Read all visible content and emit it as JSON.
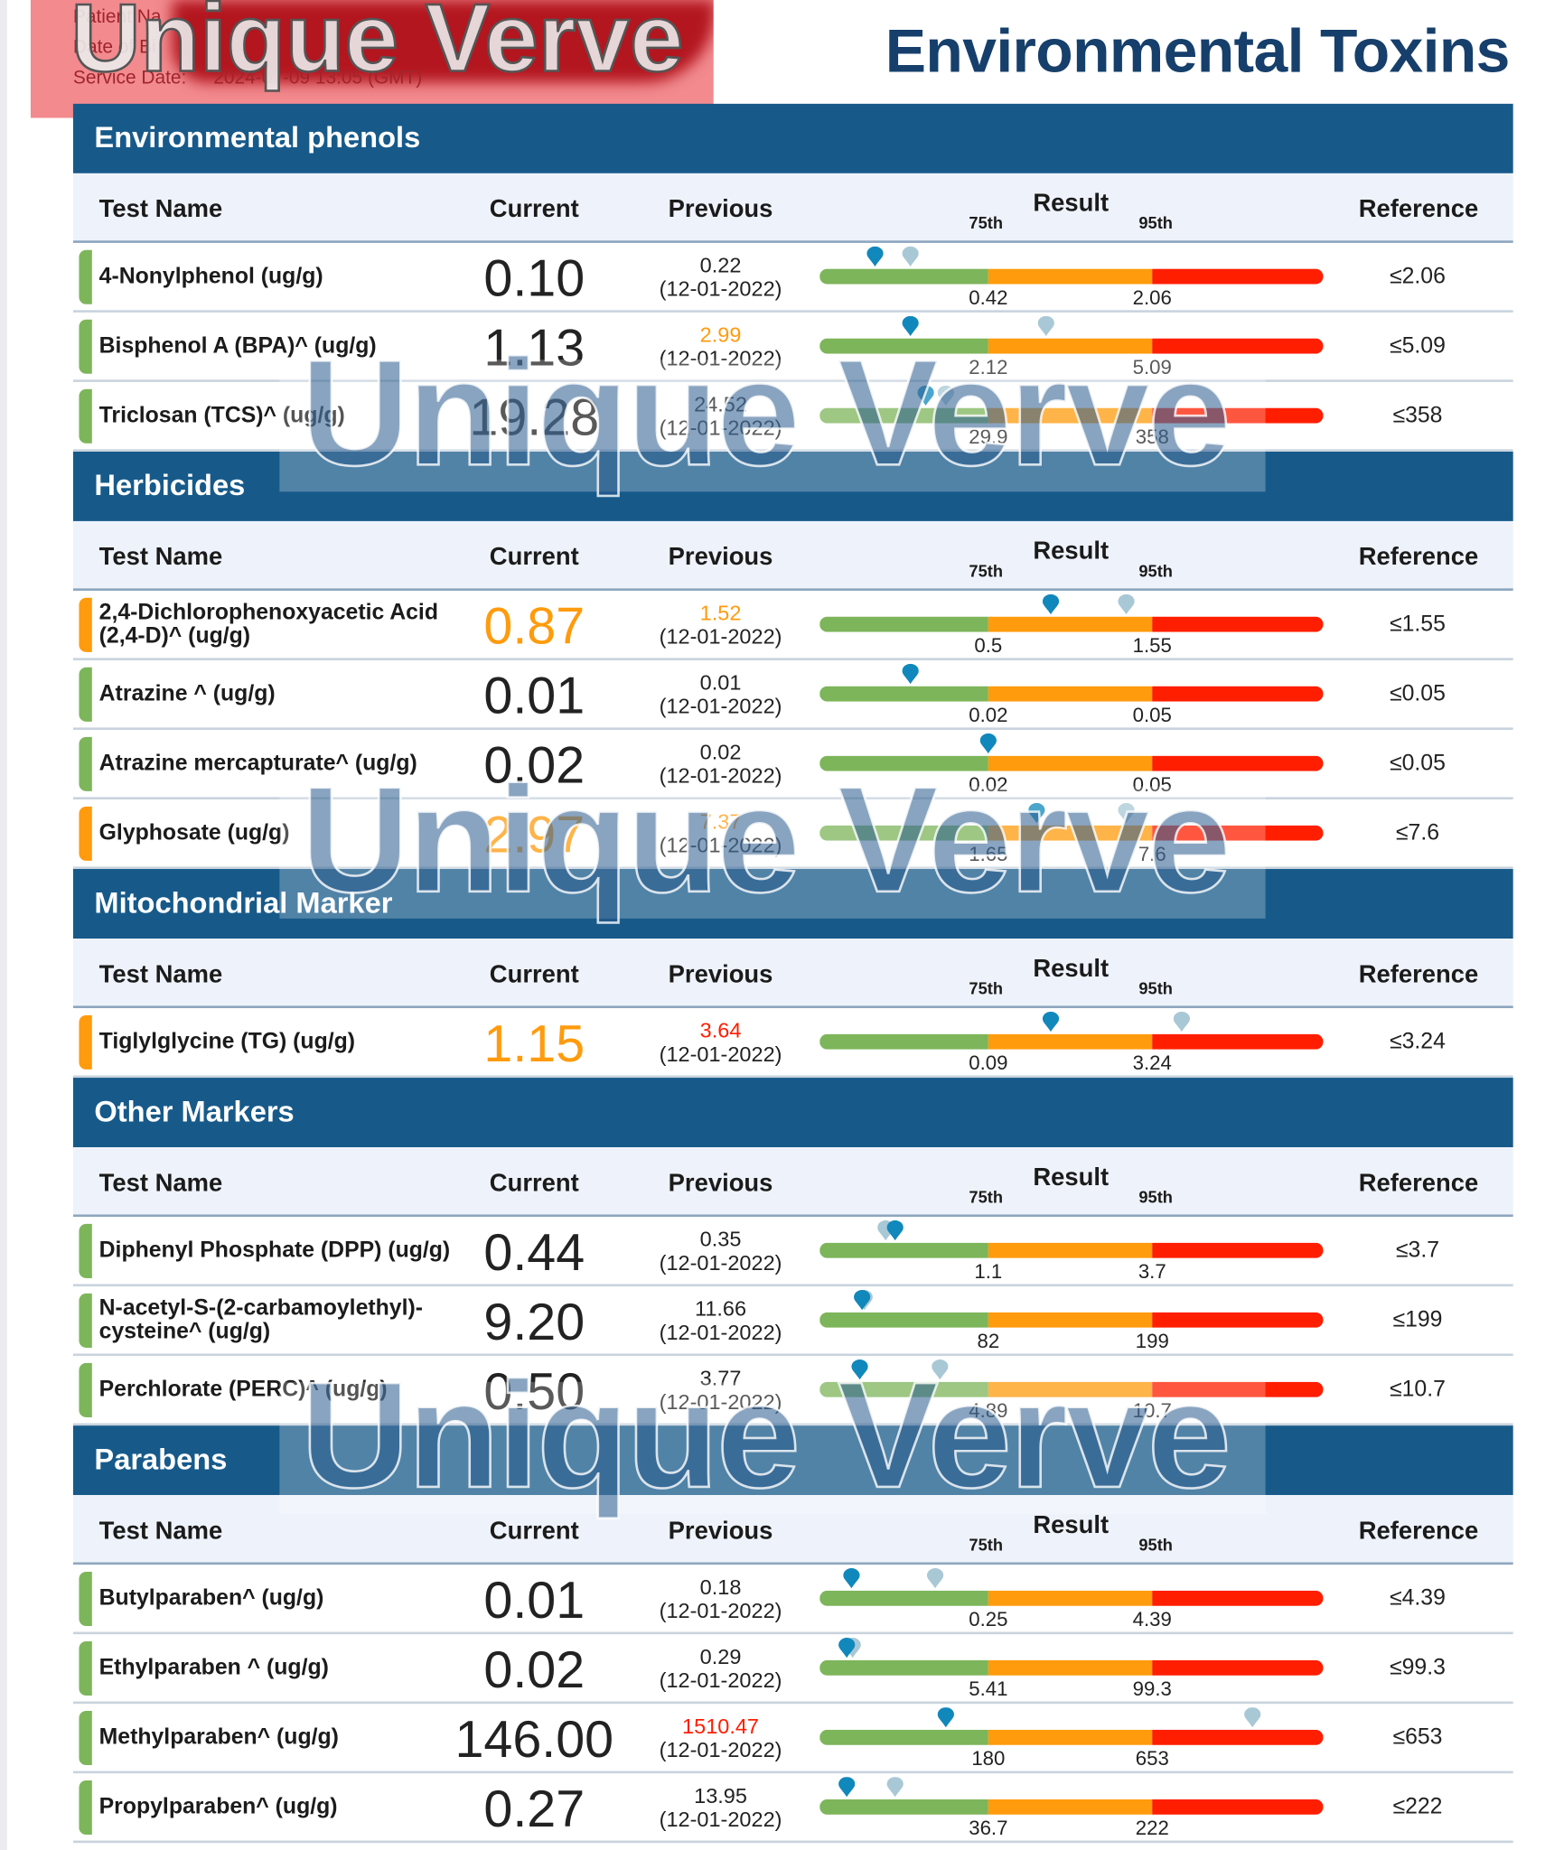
{
  "patient": {
    "name_label": "Patient Na",
    "dob_label": "Date of Bi",
    "service_date_label": "Service Date:",
    "service_date": "2024-07-09 13:05 (GMT)"
  },
  "watermark": "Unique Verve",
  "title": "Environmental Toxins",
  "columns": {
    "test_name": "Test Name",
    "current": "Current",
    "previous": "Previous",
    "result": "Result",
    "p75": "75th",
    "p95": "95th",
    "reference": "Reference"
  },
  "colors": {
    "normal": "#7db55a",
    "elevated": "#ff9b0d",
    "high": "#ff1e00",
    "current_pin": "#1188bb",
    "previous_pin": "#a9c8d6"
  },
  "sections": [
    {
      "title": "Environmental phenols",
      "rows": [
        {
          "name": "4-Nonylphenol (ug/g)",
          "status": "normal",
          "current": "0.10",
          "previous": "0.22",
          "previous_status": "normal",
          "previous_date": "(12-01-2022)",
          "t75": "0.42",
          "t95": "2.06",
          "reference": "≤2.06",
          "current_pos": 0.11,
          "previous_pos": 0.18
        },
        {
          "name": "Bisphenol A (BPA)^ (ug/g)",
          "status": "normal",
          "current": "1.13",
          "previous": "2.99",
          "previous_status": "elevated",
          "previous_date": "(12-01-2022)",
          "t75": "2.12",
          "t95": "5.09",
          "reference": "≤5.09",
          "current_pos": 0.18,
          "previous_pos": 0.45
        },
        {
          "name": "Triclosan (TCS)^ (ug/g)",
          "status": "normal",
          "current": "19.28",
          "previous": "24.52",
          "previous_status": "normal",
          "previous_date": "(12-01-2022)",
          "t75": "29.9",
          "t95": "358",
          "reference": "≤358",
          "current_pos": 0.21,
          "previous_pos": 0.25
        }
      ]
    },
    {
      "title": "Herbicides",
      "rows": [
        {
          "name": "2,4-Dichlorophenoxyacetic Acid (2,4-D)^ (ug/g)",
          "status": "elevated",
          "current": "0.87",
          "previous": "1.52",
          "previous_status": "elevated",
          "previous_date": "(12-01-2022)",
          "t75": "0.5",
          "t95": "1.55",
          "reference": "≤1.55",
          "current_pos": 0.46,
          "previous_pos": 0.61
        },
        {
          "name": "Atrazine ^ (ug/g)",
          "status": "normal",
          "current": "0.01",
          "previous": "0.01",
          "previous_status": "normal",
          "previous_date": "(12-01-2022)",
          "t75": "0.02",
          "t95": "0.05",
          "reference": "≤0.05",
          "current_pos": 0.18,
          "previous_pos": null
        },
        {
          "name": "Atrazine mercapturate^ (ug/g)",
          "status": "normal",
          "current": "0.02",
          "previous": "0.02",
          "previous_status": "normal",
          "previous_date": "(12-01-2022)",
          "t75": "0.02",
          "t95": "0.05",
          "reference": "≤0.05",
          "current_pos": 0.335,
          "previous_pos": null
        },
        {
          "name": "Glyphosate (ug/g)",
          "status": "elevated",
          "current": "2.97",
          "previous": "7.37",
          "previous_status": "elevated",
          "previous_date": "(12-01-2022)",
          "t75": "1.65",
          "t95": "7.6",
          "reference": "≤7.6",
          "current_pos": 0.43,
          "previous_pos": 0.61
        }
      ]
    },
    {
      "title": "Mitochondrial Marker",
      "rows": [
        {
          "name": "Tiglylglycine (TG) (ug/g)",
          "status": "elevated",
          "current": "1.15",
          "previous": "3.64",
          "previous_status": "high",
          "previous_date": "(12-01-2022)",
          "t75": "0.09",
          "t95": "3.24",
          "reference": "≤3.24",
          "current_pos": 0.46,
          "previous_pos": 0.72
        }
      ]
    },
    {
      "title": "Other Markers",
      "rows": [
        {
          "name": "Diphenyl Phosphate (DPP) (ug/g)",
          "status": "normal",
          "current": "0.44",
          "previous": "0.35",
          "previous_status": "normal",
          "previous_date": "(12-01-2022)",
          "t75": "1.1",
          "t95": "3.7",
          "reference": "≤3.7",
          "current_pos": 0.15,
          "previous_pos": 0.13
        },
        {
          "name": "N-acetyl-S-(2-carbamoylethyl)-cysteine^ (ug/g)",
          "status": "normal",
          "current": "9.20",
          "previous": "11.66",
          "previous_status": "normal",
          "previous_date": "(12-01-2022)",
          "t75": "82",
          "t95": "199",
          "reference": "≤199",
          "current_pos": 0.085,
          "previous_pos": 0.088
        },
        {
          "name": "Perchlorate (PERC)^ (ug/g)",
          "status": "normal",
          "current": "0.50",
          "previous": "3.77",
          "previous_status": "normal",
          "previous_date": "(12-01-2022)",
          "t75": "4.89",
          "t95": "10.7",
          "reference": "≤10.7",
          "current_pos": 0.08,
          "previous_pos": 0.24
        }
      ]
    },
    {
      "title": "Parabens",
      "rows": [
        {
          "name": "Butylparaben^ (ug/g)",
          "status": "normal",
          "current": "0.01",
          "previous": "0.18",
          "previous_status": "normal",
          "previous_date": "(12-01-2022)",
          "t75": "0.25",
          "t95": "4.39",
          "reference": "≤4.39",
          "current_pos": 0.063,
          "previous_pos": 0.23
        },
        {
          "name": "Ethylparaben ^ (ug/g)",
          "status": "normal",
          "current": "0.02",
          "previous": "0.29",
          "previous_status": "normal",
          "previous_date": "(12-01-2022)",
          "t75": "5.41",
          "t95": "99.3",
          "reference": "≤99.3",
          "current_pos": 0.054,
          "previous_pos": 0.066
        },
        {
          "name": "Methylparaben^ (ug/g)",
          "status": "normal",
          "current": "146.00",
          "previous": "1510.47",
          "previous_status": "high",
          "previous_date": "(12-01-2022)",
          "t75": "180",
          "t95": "653",
          "reference": "≤653",
          "current_pos": 0.25,
          "previous_pos": 0.86
        },
        {
          "name": "Propylparaben^ (ug/g)",
          "status": "normal",
          "current": "0.27",
          "previous": "13.95",
          "previous_status": "normal",
          "previous_date": "(12-01-2022)",
          "t75": "36.7",
          "t95": "222",
          "reference": "≤222",
          "current_pos": 0.054,
          "previous_pos": 0.15
        }
      ]
    }
  ]
}
